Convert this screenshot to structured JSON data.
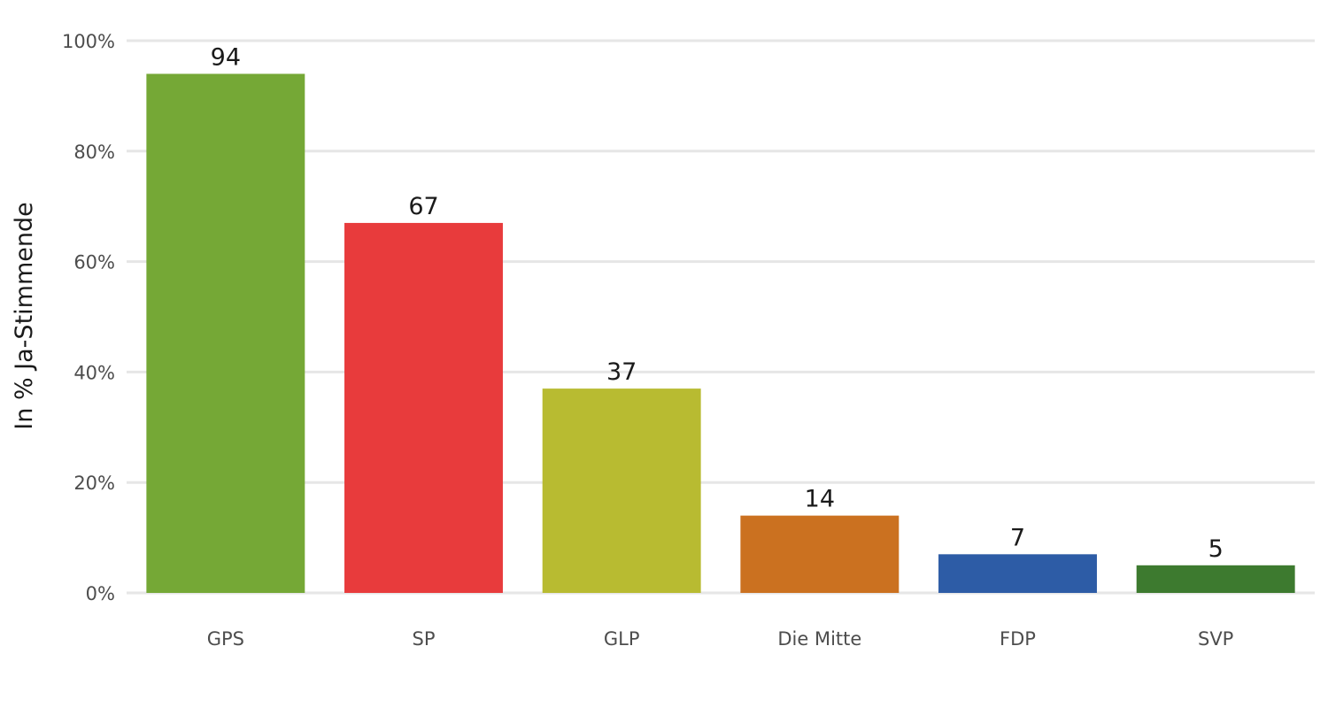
{
  "chart_data": {
    "type": "bar",
    "title": "",
    "xlabel": "",
    "ylabel": "In % Ja-Stimmende",
    "categories": [
      "GPS",
      "SP",
      "GLP",
      "Die Mitte",
      "FDP",
      "SVP"
    ],
    "values": [
      94,
      67,
      37,
      14,
      7,
      5
    ],
    "colors": [
      "#75a836",
      "#e83b3c",
      "#b8bb31",
      "#cb7120",
      "#2d5ca6",
      "#3d7a2f"
    ],
    "ylim": [
      0,
      100
    ],
    "yticks": [
      0,
      20,
      40,
      60,
      80,
      100
    ],
    "ytick_labels": [
      "0%",
      "20%",
      "40%",
      "60%",
      "80%",
      "100%"
    ],
    "data_labels": [
      "94",
      "67",
      "37",
      "14",
      "7",
      "5"
    ],
    "grid": true,
    "legend": "none"
  }
}
